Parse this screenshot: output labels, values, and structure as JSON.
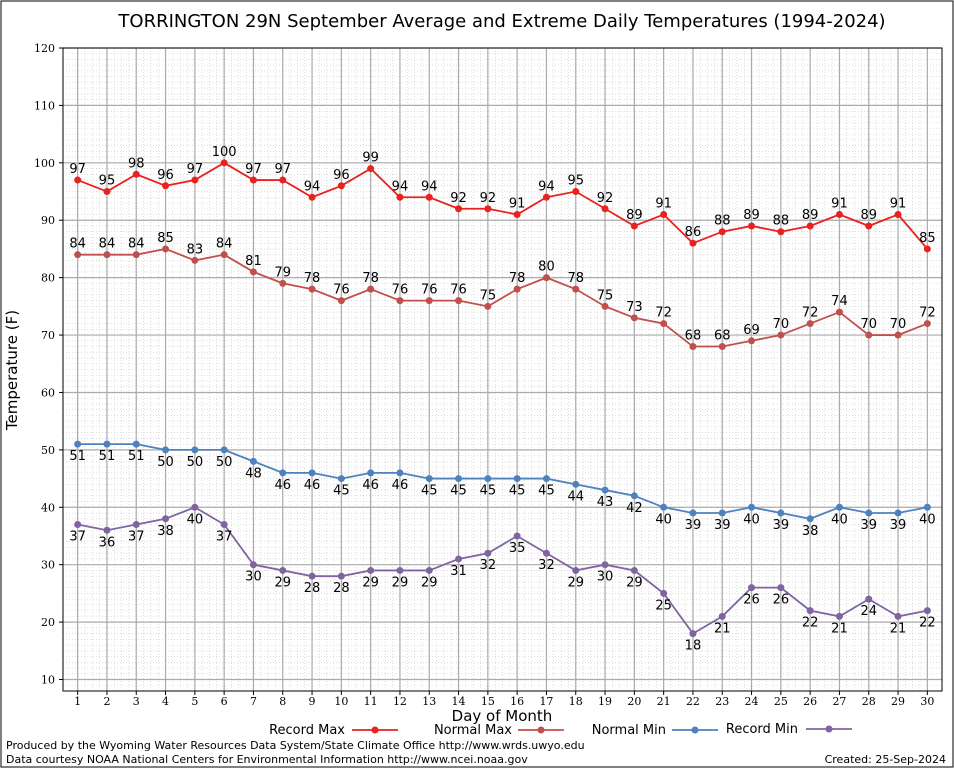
{
  "chart_data": {
    "type": "line",
    "title": "TORRINGTON 29N September Average and Extreme Daily Temperatures (1994-2024)",
    "xlabel": "Day of Month",
    "ylabel": "Temperature (F)",
    "x": [
      1,
      2,
      3,
      4,
      5,
      6,
      7,
      8,
      9,
      10,
      11,
      12,
      13,
      14,
      15,
      16,
      17,
      18,
      19,
      20,
      21,
      22,
      23,
      24,
      25,
      26,
      27,
      28,
      29,
      30
    ],
    "xlim": [
      0.5,
      30.5
    ],
    "ylim": [
      8,
      120
    ],
    "yticks": [
      10,
      20,
      30,
      40,
      50,
      60,
      70,
      80,
      90,
      100,
      110,
      120
    ],
    "grid": true,
    "legend_position": "bottom",
    "series": [
      {
        "name": "Record Max",
        "color": "#e8221f",
        "label_position": "above",
        "values": [
          97,
          95,
          98,
          96,
          97,
          100,
          97,
          97,
          94,
          96,
          99,
          94,
          94,
          92,
          92,
          91,
          94,
          95,
          92,
          89,
          91,
          86,
          88,
          89,
          88,
          89,
          91,
          89,
          91,
          85
        ]
      },
      {
        "name": "Normal Max",
        "color": "#c0504d",
        "label_position": "above",
        "values": [
          84,
          84,
          84,
          85,
          83,
          84,
          81,
          79,
          78,
          76,
          78,
          76,
          76,
          76,
          75,
          78,
          80,
          78,
          75,
          73,
          72,
          68,
          68,
          69,
          70,
          72,
          74,
          70,
          70,
          72
        ]
      },
      {
        "name": "Normal Min",
        "color": "#4f81bd",
        "label_position": "below",
        "values": [
          51,
          51,
          51,
          50,
          50,
          50,
          48,
          46,
          46,
          45,
          46,
          46,
          45,
          45,
          45,
          45,
          45,
          44,
          43,
          42,
          40,
          39,
          39,
          40,
          39,
          38,
          40,
          39,
          39,
          40
        ]
      },
      {
        "name": "Record Min",
        "color": "#8064a2",
        "label_position": "below",
        "values": [
          37,
          36,
          37,
          38,
          40,
          37,
          30,
          29,
          28,
          28,
          29,
          29,
          29,
          31,
          32,
          35,
          32,
          29,
          30,
          29,
          25,
          18,
          21,
          26,
          26,
          22,
          21,
          24,
          21,
          22
        ]
      }
    ]
  },
  "footer": {
    "produced_by": "Produced by the Wyoming Water Resources Data System/State Climate Office http://www.wrds.uwyo.edu",
    "courtesy": "Data courtesy NOAA National Centers for Environmental Information http://www.ncei.noaa.gov",
    "created": "Created:  25-Sep-2024"
  }
}
